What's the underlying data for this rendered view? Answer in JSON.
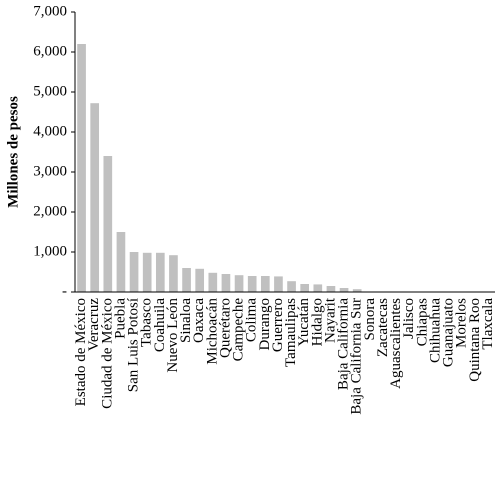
{
  "chart_data": {
    "type": "bar",
    "y_label": "Millones de pesos",
    "categories": [
      "Estado de México",
      "Veracruz",
      "Ciudad de México",
      "Puebla",
      "San Luis Potosí",
      "Tabasco",
      "Coahuila",
      "Nuevo León",
      "Sinaloa",
      "Oaxaca",
      "Michoacán",
      "Querétaro",
      "Campeche",
      "Colima",
      "Durango",
      "Guerrero",
      "Tamaulipas",
      "Yucatán",
      "Hidalgo",
      "Nayarit",
      "Baja California",
      "Baja California Sur",
      "Sonora",
      "Zacatecas",
      "Aguascalientes",
      "Jalisco",
      "Chiapas",
      "Chihuahua",
      "Guanajuato",
      "Morelos",
      "Quintana Roo",
      "Tlaxcala"
    ],
    "values": [
      6200,
      4720,
      3400,
      1500,
      1000,
      980,
      980,
      920,
      600,
      580,
      480,
      450,
      420,
      400,
      400,
      390,
      270,
      200,
      190,
      150,
      100,
      70,
      0,
      0,
      0,
      0,
      0,
      0,
      0,
      0,
      0,
      0
    ],
    "color": "#c0c0c0",
    "ylim": [
      0,
      7000
    ],
    "yticks": [
      {
        "value": 0,
        "label": "-"
      },
      {
        "value": 1000,
        "label": "1,000"
      },
      {
        "value": 2000,
        "label": "2,000"
      },
      {
        "value": 3000,
        "label": "3,000"
      },
      {
        "value": 4000,
        "label": "4,000"
      },
      {
        "value": 5000,
        "label": "5,000"
      },
      {
        "value": 6000,
        "label": "6,000"
      },
      {
        "value": 7000,
        "label": "7,000"
      }
    ],
    "grid": false
  }
}
